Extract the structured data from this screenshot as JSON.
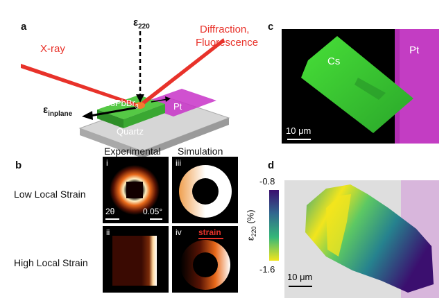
{
  "panels": {
    "a": {
      "letter": "a",
      "xray": "X-ray",
      "epsilon_main": "ε",
      "epsilon_main_sub": "220",
      "diffraction": "Diffraction,",
      "fluorescence": "Fluorescence",
      "crystal": "CsPbBr",
      "crystal_sub": "3",
      "pt": "Pt",
      "quartz": "Quartz",
      "epsilon_inplane": "ε",
      "epsilon_inplane_sub": "inplane"
    },
    "b": {
      "letter": "b",
      "col_experimental": "Experimental",
      "col_simulation": "Simulation",
      "row_low": "Low Local Strain",
      "row_high": "High Local Strain",
      "tile_i": "i",
      "tile_ii": "ii",
      "tile_iii": "iii",
      "tile_iv": "iv",
      "two_theta": "2θ",
      "angle_scale": "0.05°",
      "strain_label": "strain"
    },
    "c": {
      "letter": "c",
      "cs": "Cs",
      "pt": "Pt",
      "scalebar": "10 μm"
    },
    "d": {
      "letter": "d",
      "colorbar_max": "-0.8",
      "colorbar_min": "-1.6",
      "colorbar_label": "ε",
      "colorbar_label_sub": "220",
      "colorbar_unit": " (%)",
      "scalebar": "10 μm"
    }
  },
  "colors": {
    "red": "#e8322a",
    "green": "#3cc832",
    "magenta": "#c832c8",
    "quartz": "#bfbfbf",
    "viridis_low": "#f2e51d",
    "viridis_high": "#3b0f6f"
  }
}
